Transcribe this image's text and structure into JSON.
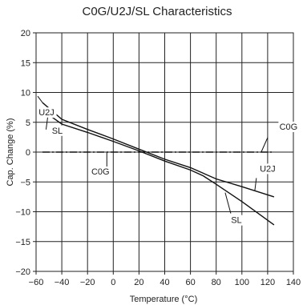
{
  "chart_data": {
    "type": "line",
    "title": "C0G/U2J/SL Characteristics",
    "xlabel": "Temperature (°C)",
    "ylabel": "Cap. Change (%)",
    "xlim": [
      -60,
      140
    ],
    "ylim": [
      -20,
      20
    ],
    "xticks": [
      -60,
      -40,
      -20,
      0,
      20,
      40,
      60,
      80,
      100,
      120,
      140
    ],
    "yticks": [
      20,
      15,
      10,
      5,
      0,
      -5,
      -10,
      -15,
      -20
    ],
    "grid": true,
    "series": [
      {
        "name": "C0G",
        "style": "dashdot",
        "x": [
          -55,
          125
        ],
        "y": [
          0,
          0
        ]
      },
      {
        "name": "U2J",
        "style": "solid",
        "x": [
          -55,
          -40,
          -20,
          0,
          20,
          40,
          60,
          80,
          100,
          125
        ],
        "y": [
          8.3,
          5.5,
          3.8,
          2.2,
          0.5,
          -1.2,
          -2.6,
          -4.5,
          -5.8,
          -7.5
        ]
      },
      {
        "name": "SL",
        "style": "solid",
        "x": [
          -55,
          -40,
          -20,
          0,
          20,
          40,
          60,
          70,
          80,
          100,
          125
        ],
        "y": [
          7.0,
          4.7,
          3.3,
          1.8,
          0.2,
          -1.5,
          -3.0,
          -4.0,
          -5.4,
          -8.3,
          -12.2
        ]
      }
    ],
    "annotations": [
      {
        "text": "U2J",
        "series": "U2J",
        "at": [
          -55,
          8.3
        ]
      },
      {
        "text": "SL",
        "series": "SL",
        "at": [
          -51,
          5.8
        ]
      },
      {
        "text": "C0G",
        "series": "C0G",
        "at": [
          -5,
          0
        ]
      },
      {
        "text": "C0G",
        "series": "C0G",
        "at": [
          115,
          0
        ]
      },
      {
        "text": "U2J",
        "series": "U2J",
        "at": [
          110,
          -6.5
        ]
      },
      {
        "text": "SL",
        "series": "SL",
        "at": [
          87,
          -6.8
        ]
      }
    ]
  }
}
